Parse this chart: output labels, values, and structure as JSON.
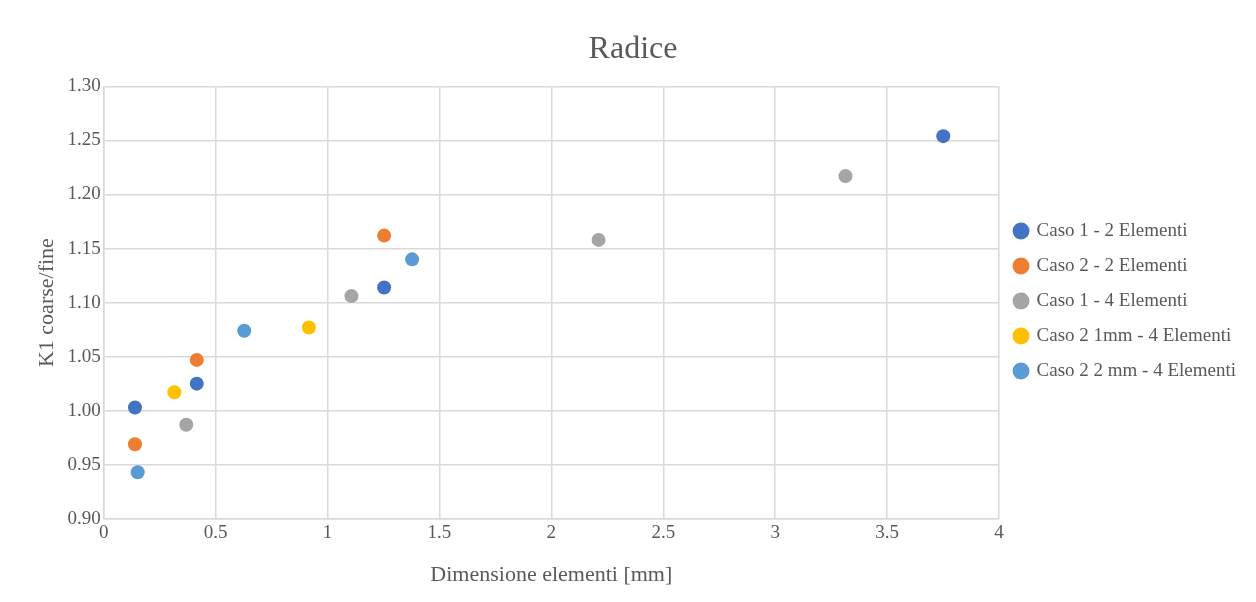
{
  "chart_data": {
    "type": "scatter",
    "title": "Radice",
    "xlabel": "Dimensione elementi [mm]",
    "ylabel": "K1 coarse/fine",
    "xlim": [
      0,
      4
    ],
    "xticks": [
      0,
      0.5,
      1,
      1.5,
      2,
      2.5,
      3,
      3.5,
      4
    ],
    "ylim": [
      0.9,
      1.3
    ],
    "yticks": [
      {
        "value": 0.9,
        "label": "0.90"
      },
      {
        "value": 0.95,
        "label": "0.95"
      },
      {
        "value": 1.0,
        "label": "1.00"
      },
      {
        "value": 1.05,
        "label": "1.05"
      },
      {
        "value": 1.1,
        "label": "1.10"
      },
      {
        "value": 1.15,
        "label": "1.15"
      },
      {
        "value": 1.2,
        "label": "1.20"
      },
      {
        "value": 1.25,
        "label": "1.25"
      },
      {
        "value": 1.3,
        "label": "1.30"
      }
    ],
    "grid": true,
    "legend": "right",
    "marker": "circle",
    "series": [
      {
        "name": "Caso 1 - 2 Elementi",
        "color": "#4472c4",
        "x": [
          0.14,
          0.416,
          1.253,
          3.751
        ],
        "values": [
          1.003,
          1.025,
          1.114,
          1.254
        ]
      },
      {
        "name": "Caso 2 - 2 Elementi",
        "color": "#ed7d31",
        "x": [
          0.14,
          0.416,
          1.253
        ],
        "values": [
          0.969,
          1.047,
          1.162
        ]
      },
      {
        "name": "Caso 1 - 4 Elementi",
        "color": "#a5a5a5",
        "x": [
          0.369,
          1.107,
          2.211,
          3.314
        ],
        "values": [
          0.987,
          1.106,
          1.158,
          1.217
        ]
      },
      {
        "name": "Caso 2 1mm - 4 Elementi",
        "color": "#ffc000",
        "x": [
          0.316,
          0.917
        ],
        "values": [
          1.017,
          1.077
        ]
      },
      {
        "name": "Caso 2 2 mm - 4 Elementi",
        "color": "#5b9bd5",
        "x": [
          0.152,
          0.628,
          1.378
        ],
        "values": [
          0.943,
          1.074,
          1.14
        ]
      }
    ]
  }
}
